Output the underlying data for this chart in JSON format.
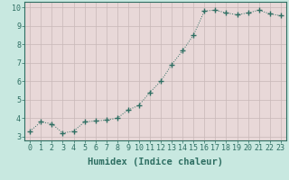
{
  "x": [
    0,
    1,
    2,
    3,
    4,
    5,
    6,
    7,
    8,
    9,
    10,
    11,
    12,
    13,
    14,
    15,
    16,
    17,
    18,
    19,
    20,
    21,
    22,
    23
  ],
  "y": [
    3.3,
    3.8,
    3.7,
    3.2,
    3.3,
    3.8,
    3.85,
    3.9,
    4.0,
    4.45,
    4.7,
    5.4,
    6.0,
    6.9,
    7.65,
    8.5,
    9.8,
    9.85,
    9.7,
    9.6,
    9.7,
    9.85,
    9.65,
    9.55
  ],
  "line_color": "#2e6e62",
  "marker": "+",
  "marker_size": 4,
  "background_color": "#c8e8e0",
  "plot_bg_color": "#e8d8d8",
  "grid_color": "#c8b8b8",
  "xlabel": "Humidex (Indice chaleur)",
  "xlabel_fontsize": 7.5,
  "tick_color": "#2e6e62",
  "tick_fontsize": 6,
  "xlim": [
    -0.5,
    23.5
  ],
  "ylim": [
    2.8,
    10.3
  ],
  "yticks": [
    3,
    4,
    5,
    6,
    7,
    8,
    9,
    10
  ],
  "xticks": [
    0,
    1,
    2,
    3,
    4,
    5,
    6,
    7,
    8,
    9,
    10,
    11,
    12,
    13,
    14,
    15,
    16,
    17,
    18,
    19,
    20,
    21,
    22,
    23
  ]
}
